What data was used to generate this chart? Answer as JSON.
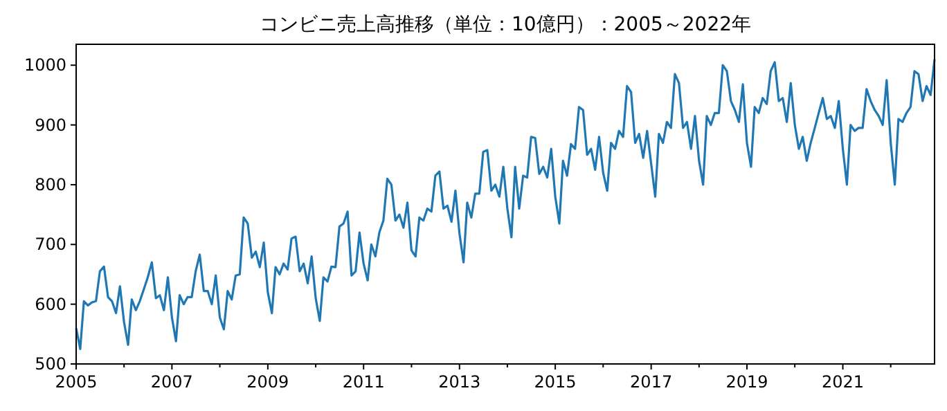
{
  "chart_data": {
    "type": "line",
    "title": "コンビニ売上高推移（単位：10億円）：2005～2022年",
    "x": [
      "2005-01",
      "2005-02",
      "2005-03",
      "2005-04",
      "2005-05",
      "2005-06",
      "2005-07",
      "2005-08",
      "2005-09",
      "2005-10",
      "2005-11",
      "2005-12",
      "2006-01",
      "2006-02",
      "2006-03",
      "2006-04",
      "2006-05",
      "2006-06",
      "2006-07",
      "2006-08",
      "2006-09",
      "2006-10",
      "2006-11",
      "2006-12",
      "2007-01",
      "2007-02",
      "2007-03",
      "2007-04",
      "2007-05",
      "2007-06",
      "2007-07",
      "2007-08",
      "2007-09",
      "2007-10",
      "2007-11",
      "2007-12",
      "2008-01",
      "2008-02",
      "2008-03",
      "2008-04",
      "2008-05",
      "2008-06",
      "2008-07",
      "2008-08",
      "2008-09",
      "2008-10",
      "2008-11",
      "2008-12",
      "2009-01",
      "2009-02",
      "2009-03",
      "2009-04",
      "2009-05",
      "2009-06",
      "2009-07",
      "2009-08",
      "2009-09",
      "2009-10",
      "2009-11",
      "2009-12",
      "2010-01",
      "2010-02",
      "2010-03",
      "2010-04",
      "2010-05",
      "2010-06",
      "2010-07",
      "2010-08",
      "2010-09",
      "2010-10",
      "2010-11",
      "2010-12",
      "2011-01",
      "2011-02",
      "2011-03",
      "2011-04",
      "2011-05",
      "2011-06",
      "2011-07",
      "2011-08",
      "2011-09",
      "2011-10",
      "2011-11",
      "2011-12",
      "2012-01",
      "2012-02",
      "2012-03",
      "2012-04",
      "2012-05",
      "2012-06",
      "2012-07",
      "2012-08",
      "2012-09",
      "2012-10",
      "2012-11",
      "2012-12",
      "2013-01",
      "2013-02",
      "2013-03",
      "2013-04",
      "2013-05",
      "2013-06",
      "2013-07",
      "2013-08",
      "2013-09",
      "2013-10",
      "2013-11",
      "2013-12",
      "2014-01",
      "2014-02",
      "2014-03",
      "2014-04",
      "2014-05",
      "2014-06",
      "2014-07",
      "2014-08",
      "2014-09",
      "2014-10",
      "2014-11",
      "2014-12",
      "2015-01",
      "2015-02",
      "2015-03",
      "2015-04",
      "2015-05",
      "2015-06",
      "2015-07",
      "2015-08",
      "2015-09",
      "2015-10",
      "2015-11",
      "2015-12",
      "2016-01",
      "2016-02",
      "2016-03",
      "2016-04",
      "2016-05",
      "2016-06",
      "2016-07",
      "2016-08",
      "2016-09",
      "2016-10",
      "2016-11",
      "2016-12",
      "2017-01",
      "2017-02",
      "2017-03",
      "2017-04",
      "2017-05",
      "2017-06",
      "2017-07",
      "2017-08",
      "2017-09",
      "2017-10",
      "2017-11",
      "2017-12",
      "2018-01",
      "2018-02",
      "2018-03",
      "2018-04",
      "2018-05",
      "2018-06",
      "2018-07",
      "2018-08",
      "2018-09",
      "2018-10",
      "2018-11",
      "2018-12",
      "2019-01",
      "2019-02",
      "2019-03",
      "2019-04",
      "2019-05",
      "2019-06",
      "2019-07",
      "2019-08",
      "2019-09",
      "2019-10",
      "2019-11",
      "2019-12",
      "2020-01",
      "2020-02",
      "2020-03",
      "2020-04",
      "2020-05",
      "2020-06",
      "2020-07",
      "2020-08",
      "2020-09",
      "2020-10",
      "2020-11",
      "2020-12",
      "2021-01",
      "2021-02",
      "2021-03",
      "2021-04",
      "2021-05",
      "2021-06",
      "2021-07",
      "2021-08",
      "2021-09",
      "2021-10",
      "2021-11",
      "2021-12",
      "2022-01",
      "2022-02",
      "2022-03",
      "2022-04",
      "2022-05",
      "2022-06",
      "2022-07",
      "2022-08",
      "2022-09",
      "2022-10",
      "2022-11",
      "2022-12"
    ],
    "series": [
      {
        "color": "#1f77b4",
        "values": [
          560,
          525,
          605,
          598,
          603,
          605,
          655,
          663,
          612,
          605,
          585,
          630,
          570,
          532,
          608,
          590,
          605,
          625,
          645,
          670,
          610,
          615,
          590,
          645,
          578,
          538,
          615,
          600,
          612,
          612,
          655,
          683,
          622,
          622,
          600,
          648,
          578,
          558,
          622,
          608,
          648,
          650,
          745,
          735,
          678,
          688,
          662,
          703,
          620,
          585,
          662,
          650,
          668,
          658,
          710,
          713,
          655,
          668,
          635,
          680,
          610,
          572,
          645,
          638,
          663,
          662,
          730,
          735,
          755,
          648,
          655,
          720,
          668,
          640,
          700,
          680,
          720,
          740,
          810,
          800,
          740,
          750,
          728,
          770,
          690,
          680,
          745,
          740,
          760,
          755,
          815,
          822,
          760,
          765,
          738,
          790,
          718,
          670,
          770,
          745,
          785,
          785,
          855,
          858,
          790,
          800,
          780,
          830,
          760,
          712,
          830,
          760,
          815,
          812,
          880,
          878,
          818,
          830,
          812,
          860,
          780,
          735,
          840,
          815,
          868,
          860,
          930,
          925,
          850,
          860,
          825,
          880,
          820,
          790,
          870,
          860,
          890,
          880,
          965,
          955,
          870,
          885,
          845,
          890,
          835,
          780,
          885,
          870,
          905,
          895,
          985,
          970,
          895,
          905,
          860,
          915,
          840,
          800,
          915,
          900,
          920,
          920,
          1000,
          990,
          940,
          925,
          905,
          968,
          870,
          830,
          930,
          920,
          945,
          935,
          990,
          1005,
          940,
          945,
          905,
          970,
          900,
          860,
          880,
          840,
          870,
          895,
          920,
          945,
          910,
          915,
          895,
          940,
          860,
          800,
          900,
          890,
          895,
          895,
          960,
          940,
          925,
          915,
          900,
          975,
          870,
          800,
          910,
          905,
          920,
          930,
          990,
          985,
          940,
          965,
          950,
          1010
        ]
      }
    ],
    "xlim": [
      "2005-01",
      "2022-12"
    ],
    "xticks": [
      {
        "value": "2005",
        "label": "2005"
      },
      {
        "value": "2006",
        "label": null
      },
      {
        "value": "2007",
        "label": "2007"
      },
      {
        "value": "2008",
        "label": null
      },
      {
        "value": "2009",
        "label": "2009"
      },
      {
        "value": "2010",
        "label": null
      },
      {
        "value": "2011",
        "label": "2011"
      },
      {
        "value": "2012",
        "label": null
      },
      {
        "value": "2013",
        "label": "2013"
      },
      {
        "value": "2014",
        "label": null
      },
      {
        "value": "2015",
        "label": "2015"
      },
      {
        "value": "2016",
        "label": null
      },
      {
        "value": "2017",
        "label": "2017"
      },
      {
        "value": "2018",
        "label": null
      },
      {
        "value": "2019",
        "label": "2019"
      },
      {
        "value": "2020",
        "label": null
      },
      {
        "value": "2021",
        "label": "2021"
      },
      {
        "value": "2022",
        "label": null
      }
    ],
    "ylim": [
      500,
      1035
    ],
    "yticks": [
      500,
      600,
      700,
      800,
      900,
      1000
    ]
  }
}
